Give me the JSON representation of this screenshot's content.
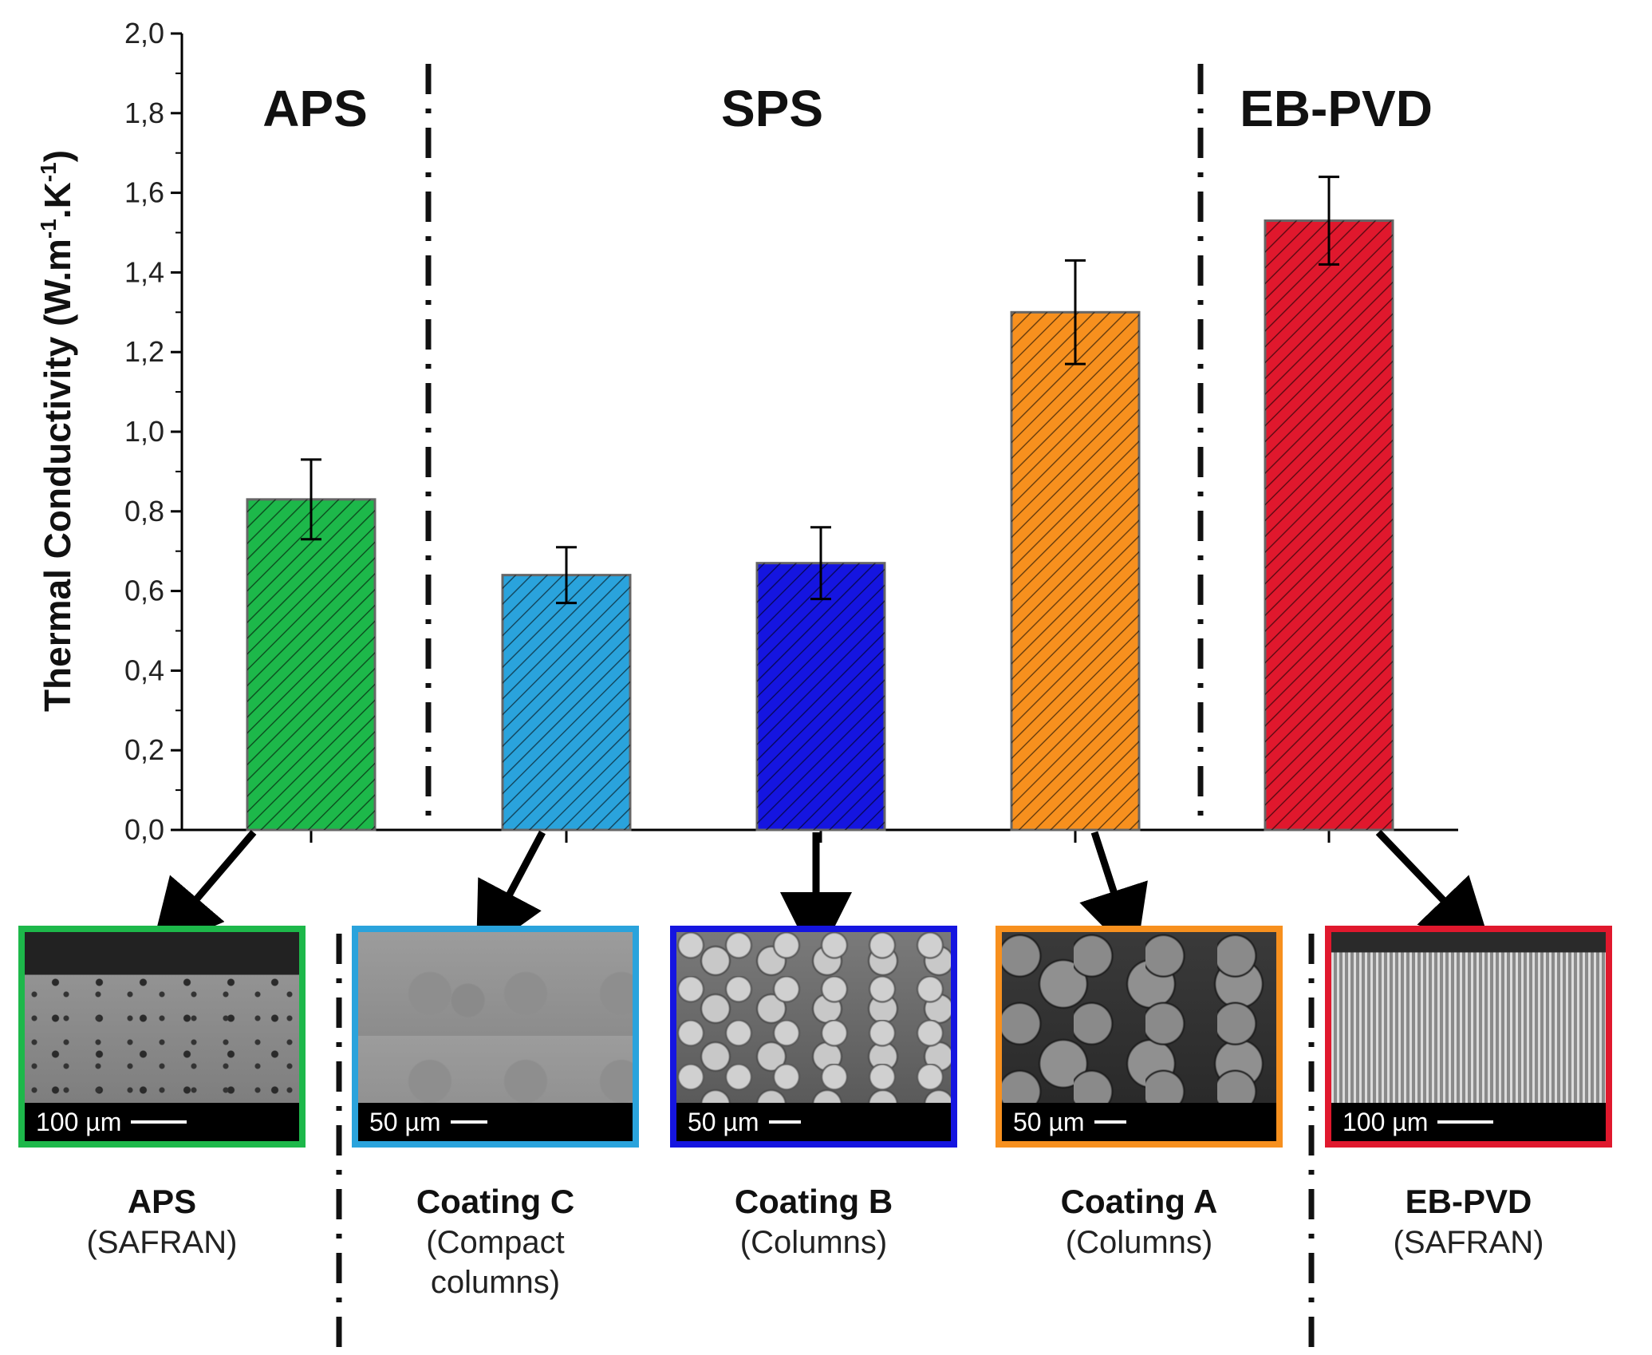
{
  "chart_data": {
    "type": "bar",
    "ylabel": "Thermal Conductivity (W.m",
    "ylabel_sup1": "-1",
    "ylabel_mid": ".K",
    "ylabel_sup2": "-1",
    "ylabel_end": ")",
    "ylim": [
      0,
      2.0
    ],
    "yticks": [
      "0,0",
      "0,2",
      "0,4",
      "0,6",
      "0,8",
      "1,0",
      "1,2",
      "1,4",
      "1,6",
      "1,8",
      "2,0"
    ],
    "group_labels": [
      "APS",
      "SPS",
      "EB-PVD"
    ],
    "categories": [
      "APS",
      "Coating C",
      "Coating B",
      "Coating A",
      "EB-PVD"
    ],
    "values": [
      0.83,
      0.64,
      0.67,
      1.3,
      1.53
    ],
    "errors": [
      0.1,
      0.07,
      0.09,
      0.13,
      0.11
    ],
    "colors": [
      "#1db84a",
      "#2aa3dc",
      "#1515e0",
      "#f7901e",
      "#e0182d"
    ]
  },
  "panels": [
    {
      "name": "APS",
      "desc": "(SAFRAN)",
      "scale": "100 µm",
      "color": "#1db84a"
    },
    {
      "name": "Coating C",
      "desc": "(Compact columns)",
      "desc1": "(Compact",
      "desc2": "columns)",
      "scale": "50 µm",
      "color": "#2aa3dc"
    },
    {
      "name": "Coating B",
      "desc": "(Columns)",
      "scale": "50 µm",
      "color": "#1515e0"
    },
    {
      "name": "Coating A",
      "desc": "(Columns)",
      "scale": "50 µm",
      "color": "#f7901e"
    },
    {
      "name": "EB-PVD",
      "desc": "(SAFRAN)",
      "scale": "100 µm",
      "color": "#e0182d"
    }
  ]
}
